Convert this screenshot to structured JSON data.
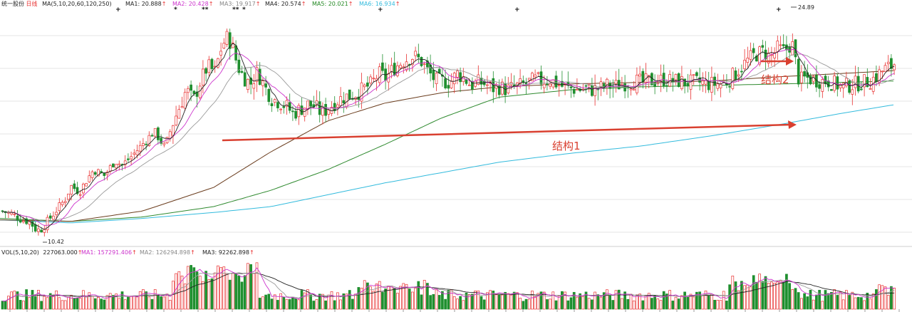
{
  "header": {
    "stock_name": "统一股份",
    "period": "日线",
    "ma_label": "MA(5,10,20,60,120,250)",
    "indicators": [
      {
        "label": "MA1: 20.888",
        "color": "#222222"
      },
      {
        "label": "MA2: 20.428",
        "color": "#cc33cc"
      },
      {
        "label": "MA3: 19.917",
        "color": "#888888"
      },
      {
        "label": "MA4: 20.574",
        "color": "#222222"
      },
      {
        "label": "MA5: 20.021",
        "color": "#228822"
      },
      {
        "label": "MA6: 16.934",
        "color": "#33bbdd"
      }
    ],
    "up_arrow": "↑",
    "up_color": "#e83030"
  },
  "volume_header": {
    "label": "VOL(5,10,20)",
    "value": "227063.000",
    "indicators": [
      {
        "label": "MA1: 157291.406",
        "color": "#cc33cc"
      },
      {
        "label": "MA2: 126294.898",
        "color": "#888888"
      },
      {
        "label": "MA3: 92262.898",
        "color": "#222222"
      }
    ]
  },
  "annotations": {
    "structure1": "结构1",
    "structure2": "结构2",
    "high_label": "24.89",
    "low_label": "10.42",
    "markers": [
      "+",
      "*",
      "**",
      "**",
      "*",
      "+",
      "+",
      "+"
    ],
    "arrow_color": "#d94030"
  },
  "colors": {
    "up": "#e83030",
    "down": "#1f8f2f",
    "ma5": "#222222",
    "ma10": "#cc33cc",
    "ma20": "#999999",
    "ma60": "#6b3d1e",
    "ma120": "#2f8a2f",
    "ma250": "#33bbdd",
    "grid": "#e4e4e4"
  },
  "chart_data": {
    "type": "candlestick",
    "ylim": [
      9.9,
      25.8
    ],
    "anchors": [
      [
        0,
        12.2
      ],
      [
        15,
        12.0
      ],
      [
        30,
        11.6
      ],
      [
        40,
        11.5
      ],
      [
        48,
        11.0
      ],
      [
        55,
        10.9
      ],
      [
        70,
        11.8
      ],
      [
        90,
        13.0
      ],
      [
        98,
        13.9
      ],
      [
        110,
        13.5
      ],
      [
        120,
        14.3
      ],
      [
        130,
        15.0
      ],
      [
        145,
        14.6
      ],
      [
        160,
        15.6
      ],
      [
        170,
        15.3
      ],
      [
        185,
        16.0
      ],
      [
        200,
        16.8
      ],
      [
        215,
        17.6
      ],
      [
        230,
        16.5
      ],
      [
        240,
        18.0
      ],
      [
        250,
        19.2
      ],
      [
        260,
        20.4
      ],
      [
        270,
        19.7
      ],
      [
        280,
        21.0
      ],
      [
        290,
        22.0
      ],
      [
        300,
        21.6
      ],
      [
        310,
        23.4
      ],
      [
        318,
        24.0
      ],
      [
        325,
        23.3
      ],
      [
        332,
        22.0
      ],
      [
        340,
        21.3
      ],
      [
        350,
        20.8
      ],
      [
        360,
        21.6
      ],
      [
        370,
        20.6
      ],
      [
        380,
        19.8
      ],
      [
        390,
        19.6
      ],
      [
        400,
        19.3
      ],
      [
        410,
        18.8
      ],
      [
        420,
        19.1
      ],
      [
        430,
        19.4
      ],
      [
        440,
        19.3
      ],
      [
        450,
        18.8
      ],
      [
        460,
        19.2
      ],
      [
        470,
        19.6
      ],
      [
        480,
        19.9
      ],
      [
        490,
        20.0
      ],
      [
        500,
        20.2
      ],
      [
        510,
        20.5
      ],
      [
        520,
        20.8
      ],
      [
        530,
        21.5
      ],
      [
        540,
        21.2
      ],
      [
        550,
        21.8
      ],
      [
        560,
        22.2
      ],
      [
        570,
        22.5
      ],
      [
        580,
        22.7
      ],
      [
        590,
        22.3
      ],
      [
        600,
        21.6
      ],
      [
        610,
        21.0
      ],
      [
        620,
        21.0
      ],
      [
        630,
        20.9
      ],
      [
        640,
        21.5
      ],
      [
        650,
        21.2
      ],
      [
        660,
        20.7
      ],
      [
        670,
        20.9
      ],
      [
        680,
        20.8
      ],
      [
        690,
        20.5
      ],
      [
        700,
        20.6
      ],
      [
        710,
        20.4
      ],
      [
        720,
        20.6
      ],
      [
        730,
        20.7
      ],
      [
        740,
        20.9
      ],
      [
        750,
        21.1
      ],
      [
        760,
        21.0
      ],
      [
        770,
        21.1
      ],
      [
        780,
        20.8
      ],
      [
        790,
        20.6
      ],
      [
        800,
        20.5
      ],
      [
        810,
        20.4
      ],
      [
        820,
        20.5
      ],
      [
        830,
        20.4
      ],
      [
        840,
        20.5
      ],
      [
        850,
        20.7
      ],
      [
        860,
        20.6
      ],
      [
        870,
        20.8
      ],
      [
        880,
        20.9
      ],
      [
        890,
        21.0
      ],
      [
        900,
        20.9
      ],
      [
        910,
        21.0
      ],
      [
        920,
        21.0
      ],
      [
        930,
        21.1
      ],
      [
        940,
        21.0
      ],
      [
        950,
        21.0
      ],
      [
        960,
        20.9
      ],
      [
        970,
        20.9
      ],
      [
        980,
        20.9
      ],
      [
        990,
        20.8
      ],
      [
        1000,
        20.8
      ],
      [
        1010,
        20.8
      ],
      [
        1020,
        21.0
      ],
      [
        1030,
        21.5
      ],
      [
        1040,
        22.0
      ],
      [
        1050,
        22.5
      ],
      [
        1060,
        22.8
      ],
      [
        1070,
        23.0
      ],
      [
        1080,
        22.6
      ],
      [
        1090,
        23.2
      ],
      [
        1100,
        23.0
      ],
      [
        1110,
        23.6
      ],
      [
        1120,
        21.0
      ],
      [
        1130,
        21.2
      ],
      [
        1140,
        21.1
      ],
      [
        1150,
        21.0
      ],
      [
        1160,
        21.0
      ],
      [
        1170,
        20.8
      ],
      [
        1180,
        20.6
      ],
      [
        1190,
        20.7
      ],
      [
        1200,
        20.8
      ],
      [
        1210,
        20.9
      ],
      [
        1220,
        21.0
      ],
      [
        1230,
        21.4
      ],
      [
        1240,
        21.8
      ],
      [
        1250,
        22.0
      ],
      [
        1256,
        22.3
      ]
    ],
    "ma_anchors": {
      "ma60": [
        [
          0,
          11.6
        ],
        [
          100,
          11.5
        ],
        [
          200,
          12.2
        ],
        [
          300,
          13.8
        ],
        [
          380,
          16.2
        ],
        [
          460,
          18.3
        ],
        [
          540,
          19.5
        ],
        [
          620,
          20.2
        ],
        [
          700,
          20.6
        ],
        [
          800,
          20.8
        ],
        [
          900,
          20.9
        ],
        [
          1000,
          21.0
        ],
        [
          1100,
          21.3
        ],
        [
          1180,
          21.5
        ],
        [
          1256,
          21.7
        ]
      ],
      "ma120": [
        [
          0,
          11.7
        ],
        [
          100,
          11.5
        ],
        [
          200,
          11.8
        ],
        [
          300,
          12.5
        ],
        [
          380,
          13.6
        ],
        [
          460,
          15.0
        ],
        [
          540,
          16.7
        ],
        [
          620,
          18.5
        ],
        [
          700,
          19.9
        ],
        [
          800,
          20.4
        ],
        [
          900,
          20.6
        ],
        [
          1000,
          20.7
        ],
        [
          1100,
          20.8
        ],
        [
          1180,
          20.9
        ],
        [
          1256,
          21.0
        ]
      ],
      "ma250": [
        [
          0,
          11.6
        ],
        [
          100,
          11.4
        ],
        [
          200,
          11.7
        ],
        [
          300,
          12.1
        ],
        [
          380,
          12.5
        ],
        [
          460,
          13.3
        ],
        [
          540,
          14.1
        ],
        [
          620,
          14.8
        ],
        [
          700,
          15.5
        ],
        [
          800,
          16.1
        ],
        [
          900,
          16.6
        ],
        [
          1000,
          17.3
        ],
        [
          1100,
          18.1
        ],
        [
          1180,
          18.8
        ],
        [
          1256,
          19.4
        ]
      ]
    },
    "volume_ylim": [
      0,
      80
    ],
    "high": 24.89,
    "low": 10.42
  }
}
